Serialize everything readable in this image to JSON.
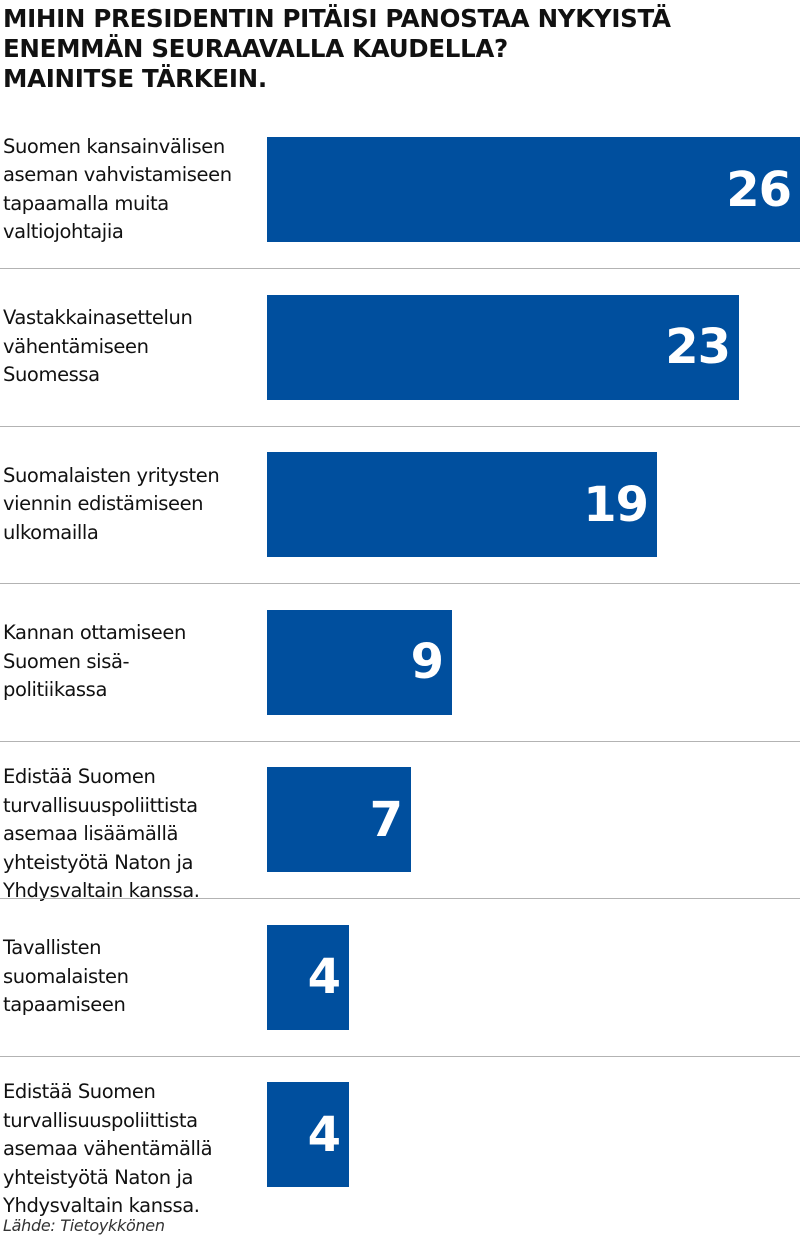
{
  "chart_data": {
    "type": "bar",
    "orientation": "horizontal",
    "title_lines": [
      "MIHIN PRESIDENTIN PITÄISI PANOSTAA NYKYISTÄ",
      "ENEMMÄN SEURAAVALLA KAUDELLA?",
      "MAINITSE TÄRKEIN."
    ],
    "categories": [
      [
        "Suomen kansainvälisen",
        "aseman vahvistamiseen",
        "tapaamalla muita",
        "valtiojohtajia"
      ],
      [
        "Vastakkainasettelun",
        "vähentämiseen",
        "Suomessa"
      ],
      [
        "Suomalaisten yritysten",
        "viennin edistämiseen",
        "ulkomailla"
      ],
      [
        "Kannan ottamiseen",
        "Suomen sisä-",
        "politiikassa"
      ],
      [
        "Edistää Suomen",
        "turvallisuuspoliittista",
        "asemaa lisäämällä",
        "yhteistyötä Naton ja",
        "Yhdysvaltain kanssa."
      ],
      [
        "Tavallisten",
        "suomalaisten",
        "tapaamiseen"
      ],
      [
        "Edistää Suomen",
        "turvallisuuspoliittista",
        "asemaa vähentämällä",
        "yhteistyötä Naton ja",
        "Yhdysvaltain kanssa."
      ]
    ],
    "values": [
      26,
      23,
      19,
      9,
      7,
      4,
      4
    ],
    "xlim": [
      0,
      26
    ],
    "bar_color": "#004f9e",
    "value_label_color": "#ffffff",
    "divider_color": "#b3b3b3",
    "grid": false,
    "legend": false,
    "source": "Lähde: Tietoykkönen"
  }
}
